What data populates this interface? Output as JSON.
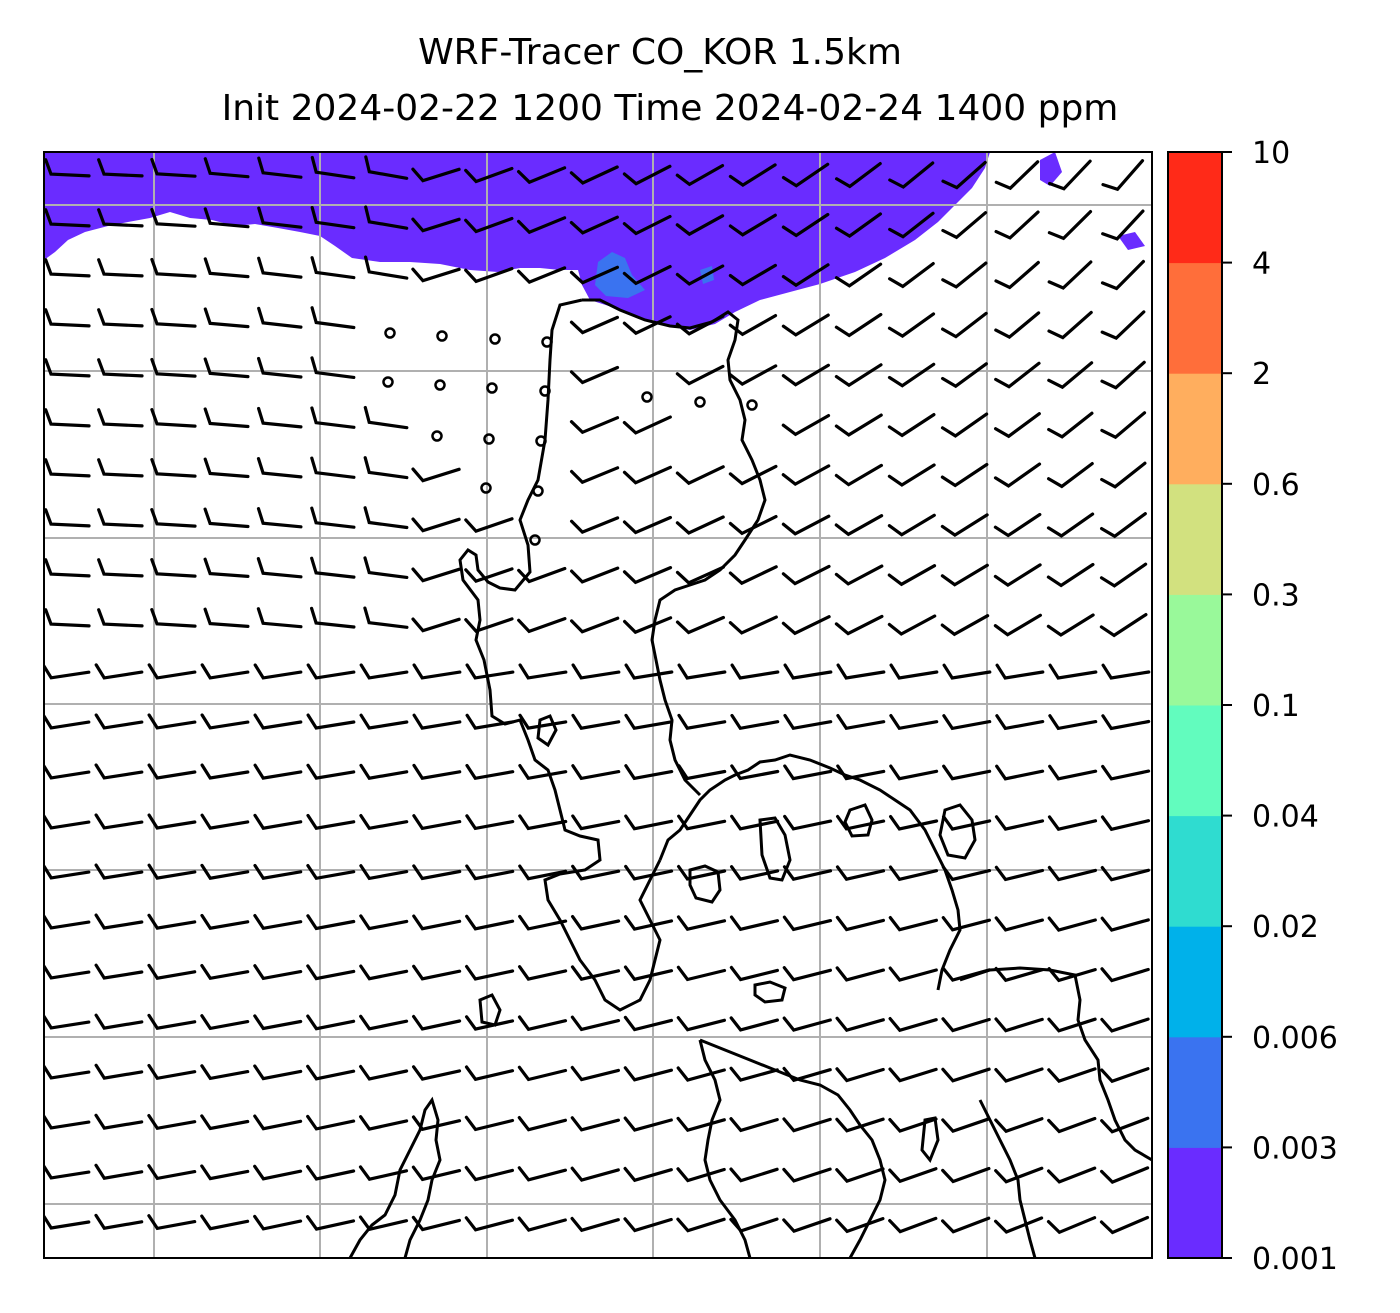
{
  "title": {
    "line1": "WRF-Tracer CO_KOR 1.5km",
    "line2": "Init 2024-02-22 1200 Time 2024-02-24 1400 ppm"
  },
  "colorbar": {
    "levels": [
      "0.001",
      "0.003",
      "0.006",
      "0.02",
      "0.04",
      "0.1",
      "0.3",
      "0.6",
      "2",
      "4",
      "10"
    ],
    "colors": [
      "#6a2cff",
      "#3a73f0",
      "#00b1ea",
      "#2fdcd0",
      "#62fcbe",
      "#99f99a",
      "#d2e17f",
      "#ffae5e",
      "#ff6e3a",
      "#ff2a18"
    ]
  },
  "map": {
    "grid_color": "#b0b0b0",
    "coast_color": "#000000",
    "tracer_color": "#6a2cff",
    "tracer_core_color": "#3a73f0"
  }
}
